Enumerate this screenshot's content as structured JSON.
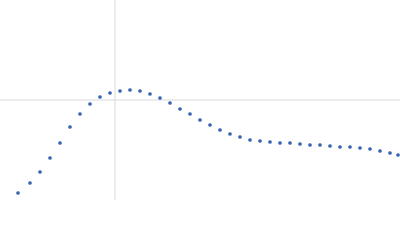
{
  "chart_data": {
    "type": "scatter",
    "color": "#3a66b0",
    "x": [
      18,
      30,
      40,
      50,
      60,
      70,
      80,
      90,
      100,
      110,
      120,
      130,
      140,
      150,
      160,
      170,
      180,
      190,
      200,
      210,
      220,
      230,
      240,
      250,
      260,
      270,
      280,
      290,
      300,
      310,
      320,
      330,
      340,
      350,
      360,
      370,
      380,
      390,
      398
    ],
    "values": [
      7,
      17,
      28,
      42,
      57,
      73,
      86,
      96,
      103,
      107,
      109,
      110,
      109,
      106,
      102,
      97,
      91,
      86,
      80,
      75,
      70,
      66,
      63,
      60,
      59,
      58,
      57,
      57,
      56,
      55,
      55,
      54,
      53,
      53,
      52,
      51,
      49,
      47,
      45
    ],
    "xlim": [
      0,
      400
    ],
    "ylim": [
      0,
      200
    ],
    "xgrid": [
      115
    ],
    "ygrid": [
      100
    ]
  }
}
